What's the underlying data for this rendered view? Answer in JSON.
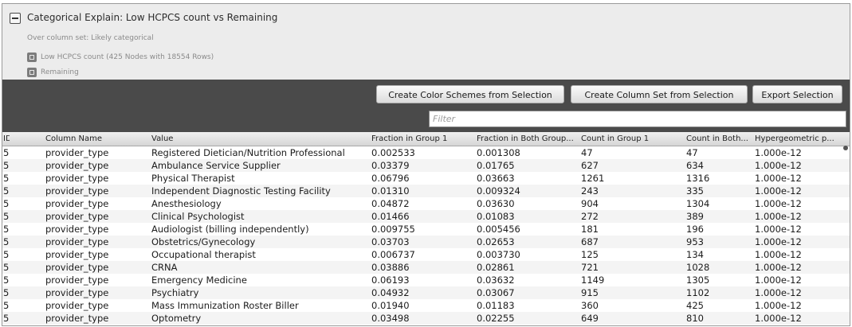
{
  "header": {
    "title": "Categorical Explain: Low HCPCS count vs Remaining",
    "subtitle": "Over column set: Likely categorical",
    "group1_label": "Low HCPCS count (425 Nodes with 18554 Rows)",
    "group2_label": "Remaining"
  },
  "toolbar": {
    "create_color_schemes": "Create Color Schemes from Selection",
    "create_column_set": "Create Column Set from Selection",
    "export_selection": "Export Selection",
    "filter_placeholder": "Filter"
  },
  "table": {
    "columns": [
      "ID",
      "Column Name",
      "Value",
      "Fraction in Group 1",
      "Fraction in Both Group...",
      "Count in Group 1",
      "Count in Both...",
      "Hypergeometric p..."
    ],
    "rows": [
      [
        "5",
        "provider_type",
        "Registered Dietician/Nutrition Professional",
        "0.002533",
        "0.001308",
        "47",
        "47",
        "1.000e-12"
      ],
      [
        "5",
        "provider_type",
        "Ambulance Service Supplier",
        "0.03379",
        "0.01765",
        "627",
        "634",
        "1.000e-12"
      ],
      [
        "5",
        "provider_type",
        "Physical Therapist",
        "0.06796",
        "0.03663",
        "1261",
        "1316",
        "1.000e-12"
      ],
      [
        "5",
        "provider_type",
        "Independent Diagnostic Testing Facility",
        "0.01310",
        "0.009324",
        "243",
        "335",
        "1.000e-12"
      ],
      [
        "5",
        "provider_type",
        "Anesthesiology",
        "0.04872",
        "0.03630",
        "904",
        "1304",
        "1.000e-12"
      ],
      [
        "5",
        "provider_type",
        "Clinical Psychologist",
        "0.01466",
        "0.01083",
        "272",
        "389",
        "1.000e-12"
      ],
      [
        "5",
        "provider_type",
        "Audiologist (billing independently)",
        "0.009755",
        "0.005456",
        "181",
        "196",
        "1.000e-12"
      ],
      [
        "5",
        "provider_type",
        "Obstetrics/Gynecology",
        "0.03703",
        "0.02653",
        "687",
        "953",
        "1.000e-12"
      ],
      [
        "5",
        "provider_type",
        "Occupational therapist",
        "0.006737",
        "0.003730",
        "125",
        "134",
        "1.000e-12"
      ],
      [
        "5",
        "provider_type",
        "CRNA",
        "0.03886",
        "0.02861",
        "721",
        "1028",
        "1.000e-12"
      ],
      [
        "5",
        "provider_type",
        "Emergency Medicine",
        "0.06193",
        "0.03632",
        "1149",
        "1305",
        "1.000e-12"
      ],
      [
        "5",
        "provider_type",
        "Psychiatry",
        "0.04932",
        "0.03067",
        "915",
        "1102",
        "1.000e-12"
      ],
      [
        "5",
        "provider_type",
        "Mass Immunization Roster Biller",
        "0.01940",
        "0.01183",
        "360",
        "425",
        "1.000e-12"
      ],
      [
        "5",
        "provider_type",
        "Optometry",
        "0.03498",
        "0.02255",
        "649",
        "810",
        "1.000e-12"
      ]
    ]
  }
}
